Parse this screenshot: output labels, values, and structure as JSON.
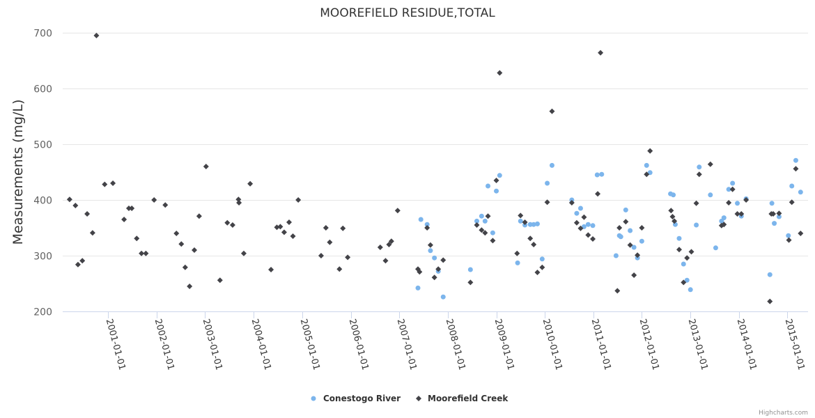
{
  "chart_data": {
    "type": "scatter",
    "title": "MOOREFIELD RESIDUE,TOTAL",
    "xlabel": "",
    "ylabel": "Measurements (mg/L)",
    "x_type": "datetime",
    "xlim": [
      "2000-01-25",
      "2015-06-05"
    ],
    "ylim": [
      200,
      700
    ],
    "yticks": [
      200,
      300,
      400,
      500,
      600,
      700
    ],
    "xticks": [
      "2001-01-01",
      "2002-01-01",
      "2003-01-01",
      "2004-01-01",
      "2005-01-01",
      "2006-01-01",
      "2007-01-01",
      "2008-01-01",
      "2009-01-01",
      "2010-01-01",
      "2011-01-01",
      "2012-01-01",
      "2013-01-01",
      "2014-01-01",
      "2015-01-01"
    ],
    "grid": true,
    "legend_position": "bottom-center",
    "credits": "Highcharts.com",
    "series": [
      {
        "name": "Conestogo River",
        "color": "#7cb5ec",
        "marker": "circle",
        "points": [
          [
            "2007-05-22",
            242
          ],
          [
            "2007-06-13",
            365
          ],
          [
            "2007-07-30",
            356
          ],
          [
            "2007-08-24",
            309
          ],
          [
            "2007-09-23",
            296
          ],
          [
            "2007-10-22",
            272
          ],
          [
            "2007-11-28",
            226
          ],
          [
            "2008-06-20",
            275
          ],
          [
            "2008-08-07",
            362
          ],
          [
            "2008-09-12",
            371
          ],
          [
            "2008-10-08",
            362
          ],
          [
            "2008-10-30",
            425
          ],
          [
            "2008-12-05",
            341
          ],
          [
            "2009-01-01",
            416
          ],
          [
            "2009-01-26",
            444
          ],
          [
            "2009-06-10",
            287
          ],
          [
            "2009-07-02",
            362
          ],
          [
            "2009-08-04",
            355
          ],
          [
            "2009-09-13",
            356
          ],
          [
            "2009-10-09",
            356
          ],
          [
            "2009-11-06",
            357
          ],
          [
            "2009-12-12",
            294
          ],
          [
            "2010-01-19",
            430
          ],
          [
            "2010-02-24",
            462
          ],
          [
            "2010-07-23",
            400
          ],
          [
            "2010-08-29",
            376
          ],
          [
            "2010-09-27",
            385
          ],
          [
            "2010-10-23",
            352
          ],
          [
            "2010-11-23",
            356
          ],
          [
            "2010-12-28",
            354
          ],
          [
            "2011-01-30",
            445
          ],
          [
            "2011-03-05",
            446
          ],
          [
            "2011-06-21",
            300
          ],
          [
            "2011-07-16",
            336
          ],
          [
            "2011-07-27",
            334
          ],
          [
            "2011-09-02",
            382
          ],
          [
            "2011-10-05",
            345
          ],
          [
            "2011-11-03",
            315
          ],
          [
            "2011-11-29",
            296
          ],
          [
            "2012-01-01",
            326
          ],
          [
            "2012-02-06",
            462
          ],
          [
            "2012-03-03",
            449
          ],
          [
            "2012-08-04",
            411
          ],
          [
            "2012-08-25",
            409
          ],
          [
            "2012-09-09",
            356
          ],
          [
            "2012-10-08",
            331
          ],
          [
            "2012-11-10",
            285
          ],
          [
            "2012-12-06",
            256
          ],
          [
            "2013-01-01",
            239
          ],
          [
            "2013-02-14",
            355
          ],
          [
            "2013-03-08",
            459
          ],
          [
            "2013-05-31",
            409
          ],
          [
            "2013-07-10",
            314
          ],
          [
            "2013-08-23",
            362
          ],
          [
            "2013-09-10",
            368
          ],
          [
            "2013-10-16",
            419
          ],
          [
            "2013-11-14",
            430
          ],
          [
            "2013-12-20",
            394
          ],
          [
            "2014-01-19",
            371
          ],
          [
            "2014-02-24",
            402
          ],
          [
            "2014-08-22",
            266
          ],
          [
            "2014-09-06",
            394
          ],
          [
            "2014-09-24",
            358
          ],
          [
            "2014-10-30",
            370
          ],
          [
            "2015-01-08",
            336
          ],
          [
            "2015-02-03",
            425
          ],
          [
            "2015-03-05",
            471
          ],
          [
            "2015-04-10",
            414
          ]
        ]
      },
      {
        "name": "Moorefield Creek",
        "color": "#434348",
        "marker": "diamond",
        "points": [
          [
            "2000-03-17",
            401
          ],
          [
            "2000-04-30",
            390
          ],
          [
            "2000-05-19",
            284
          ],
          [
            "2000-06-21",
            291
          ],
          [
            "2000-07-27",
            375
          ],
          [
            "2000-09-06",
            341
          ],
          [
            "2000-10-05",
            695
          ],
          [
            "2000-12-06",
            428
          ],
          [
            "2001-02-06",
            430
          ],
          [
            "2001-05-01",
            365
          ],
          [
            "2001-06-06",
            385
          ],
          [
            "2001-06-28",
            385
          ],
          [
            "2001-08-04",
            331
          ],
          [
            "2001-09-09",
            304
          ],
          [
            "2001-10-12",
            304
          ],
          [
            "2001-12-13",
            400
          ],
          [
            "2002-03-07",
            391
          ],
          [
            "2002-05-30",
            340
          ],
          [
            "2002-07-06",
            321
          ],
          [
            "2002-08-04",
            279
          ],
          [
            "2002-09-06",
            245
          ],
          [
            "2002-10-12",
            310
          ],
          [
            "2002-11-17",
            371
          ],
          [
            "2003-01-08",
            460
          ],
          [
            "2003-04-23",
            256
          ],
          [
            "2003-06-17",
            359
          ],
          [
            "2003-07-27",
            355
          ],
          [
            "2003-09-09",
            401
          ],
          [
            "2003-09-13",
            395
          ],
          [
            "2003-10-19",
            304
          ],
          [
            "2003-12-06",
            429
          ],
          [
            "2004-05-11",
            275
          ],
          [
            "2004-06-24",
            351
          ],
          [
            "2004-07-20",
            352
          ],
          [
            "2004-08-18",
            342
          ],
          [
            "2004-09-24",
            360
          ],
          [
            "2004-10-23",
            335
          ],
          [
            "2004-12-02",
            400
          ],
          [
            "2005-05-23",
            300
          ],
          [
            "2005-06-28",
            350
          ],
          [
            "2005-07-27",
            324
          ],
          [
            "2005-10-08",
            276
          ],
          [
            "2005-11-03",
            349
          ],
          [
            "2005-12-09",
            297
          ],
          [
            "2006-08-11",
            315
          ],
          [
            "2006-09-20",
            291
          ],
          [
            "2006-10-16",
            320
          ],
          [
            "2006-11-03",
            326
          ],
          [
            "2006-12-20",
            381
          ],
          [
            "2007-05-22",
            276
          ],
          [
            "2007-06-03",
            271
          ],
          [
            "2007-07-30",
            350
          ],
          [
            "2007-08-24",
            319
          ],
          [
            "2007-09-23",
            261
          ],
          [
            "2007-10-22",
            276
          ],
          [
            "2007-11-28",
            292
          ],
          [
            "2008-06-20",
            252
          ],
          [
            "2008-08-07",
            355
          ],
          [
            "2008-09-12",
            346
          ],
          [
            "2008-10-08",
            341
          ],
          [
            "2008-10-30",
            371
          ],
          [
            "2008-12-05",
            327
          ],
          [
            "2009-01-01",
            435
          ],
          [
            "2009-01-26",
            628
          ],
          [
            "2009-06-06",
            304
          ],
          [
            "2009-07-02",
            372
          ],
          [
            "2009-08-04",
            360
          ],
          [
            "2009-09-13",
            331
          ],
          [
            "2009-10-09",
            320
          ],
          [
            "2009-11-06",
            270
          ],
          [
            "2009-12-12",
            279
          ],
          [
            "2010-01-19",
            396
          ],
          [
            "2010-02-24",
            559
          ],
          [
            "2010-07-23",
            395
          ],
          [
            "2010-08-29",
            359
          ],
          [
            "2010-09-27",
            349
          ],
          [
            "2010-10-23",
            369
          ],
          [
            "2010-11-23",
            337
          ],
          [
            "2010-12-28",
            330
          ],
          [
            "2011-02-03",
            411
          ],
          [
            "2011-02-24",
            664
          ],
          [
            "2011-07-01",
            237
          ],
          [
            "2011-07-16",
            350
          ],
          [
            "2011-09-02",
            361
          ],
          [
            "2011-10-05",
            319
          ],
          [
            "2011-11-03",
            265
          ],
          [
            "2011-11-29",
            301
          ],
          [
            "2012-01-01",
            350
          ],
          [
            "2012-02-06",
            446
          ],
          [
            "2012-03-03",
            488
          ],
          [
            "2012-08-08",
            381
          ],
          [
            "2012-08-19",
            370
          ],
          [
            "2012-09-02",
            362
          ],
          [
            "2012-10-08",
            311
          ],
          [
            "2012-11-10",
            252
          ],
          [
            "2012-12-06",
            296
          ],
          [
            "2013-01-08",
            307
          ],
          [
            "2013-02-14",
            394
          ],
          [
            "2013-03-08",
            446
          ],
          [
            "2013-05-31",
            464
          ],
          [
            "2013-08-23",
            354
          ],
          [
            "2013-09-10",
            356
          ],
          [
            "2013-10-16",
            395
          ],
          [
            "2013-11-14",
            419
          ],
          [
            "2013-12-20",
            375
          ],
          [
            "2014-01-19",
            375
          ],
          [
            "2014-02-24",
            400
          ],
          [
            "2014-08-22",
            218
          ],
          [
            "2014-09-02",
            375
          ],
          [
            "2014-09-16",
            375
          ],
          [
            "2014-10-30",
            376
          ],
          [
            "2015-01-12",
            328
          ],
          [
            "2015-02-03",
            396
          ],
          [
            "2015-03-05",
            456
          ],
          [
            "2015-04-10",
            340
          ]
        ]
      }
    ]
  }
}
